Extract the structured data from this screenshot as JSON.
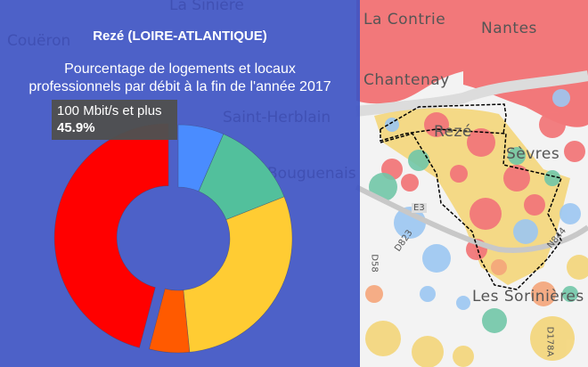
{
  "panel": {
    "title": "Rezé (LOIRE-ATLANTIQUE)",
    "subtitle": "Pourcentage de logements et locaux professionnels par débit à la fin de l'année 2017",
    "background_labels": [
      "La Sinière",
      "Couëron",
      "Saint-Herblain",
      "Bouguenais"
    ]
  },
  "tooltip": {
    "label": "100 Mbit/s et plus",
    "value": "45.9%"
  },
  "chart_data": {
    "type": "pie",
    "donut": true,
    "slices": [
      {
        "value": 6.5,
        "color": "#4a8cff"
      },
      {
        "value": 12.5,
        "color": "#52c09c"
      },
      {
        "value": 29.4,
        "color": "#ffcc33"
      },
      {
        "value": 5.7,
        "color": "#ff5a00"
      },
      {
        "label": "100 Mbit/s et plus",
        "value": 45.9,
        "color": "#ff0000",
        "highlighted": true
      }
    ]
  },
  "map": {
    "places": [
      "La Contrie",
      "Nantes",
      "Chantenay",
      "Rezé",
      "Sèvres",
      "Les Sorinières"
    ],
    "roads": [
      "E3",
      "N844",
      "D823",
      "D178A",
      "D58"
    ]
  }
}
